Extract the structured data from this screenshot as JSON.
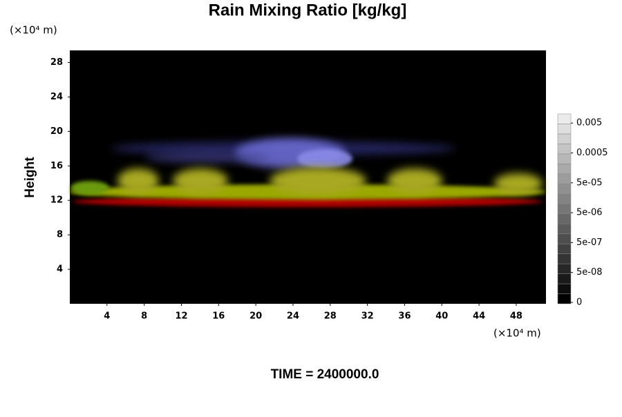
{
  "chart_data": {
    "type": "volume",
    "title": "Rain Mixing Ratio [kg/kg]",
    "ylabel": "Height",
    "x_unit": "(×10⁴ m)",
    "y_unit": "(×10⁴ m)",
    "footer": "TIME = 2400000.0",
    "xlim": [
      0,
      51.2
    ],
    "xticks": [
      4,
      8,
      12,
      16,
      20,
      24,
      28,
      32,
      36,
      40,
      44,
      48
    ],
    "ylim": [
      0,
      29.4
    ],
    "yticks": [
      4,
      8,
      12,
      16,
      20,
      24,
      28
    ],
    "colorbar_ticks": [
      0,
      {
        "value": 5e-08,
        "label": "5e-08"
      },
      {
        "value": 5e-07,
        "label": "5e-07"
      },
      {
        "value": 5e-06,
        "label": "5e-06"
      },
      {
        "value": 5e-05,
        "label": "5e-05"
      },
      0.0005,
      0.005
    ]
  }
}
